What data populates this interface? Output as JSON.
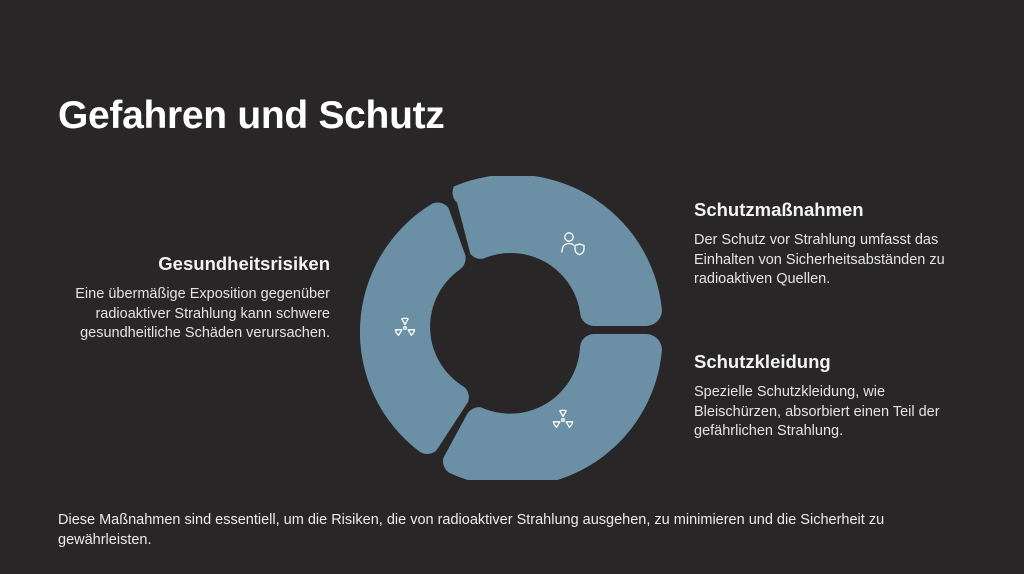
{
  "slide": {
    "title": "Gefahren und Schutz",
    "footer": "Diese Maßnahmen sind essentiell, um die Risiken, die von radioaktiver Strahlung ausgehen, zu minimieren und die Sicherheit zu gewährleisten."
  },
  "sections": [
    {
      "heading": "Gesundheitsrisiken",
      "text": "Eine übermäßige Exposition gegenüber radioaktiver Strahlung kann schwere gesundheitliche Schäden verursachen."
    },
    {
      "heading": "Schutzmaßnahmen",
      "text": "Der Schutz vor Strahlung umfasst das Einhalten von Sicherheitsabständen zu radioaktiven Quellen."
    },
    {
      "heading": "Schutzkleidung",
      "text": "Spezielle Schutzkleidung, wie Bleischürzen, absorbiert einen Teil der gefährlichen Strahlung."
    }
  ],
  "diagram": {
    "segment_color": "#6b8fa4",
    "icon_color": "#ffffff",
    "segments": [
      {
        "icon": "person-shield-icon"
      },
      {
        "icon": "radiation-icon"
      },
      {
        "icon": "radiation-icon"
      }
    ]
  }
}
